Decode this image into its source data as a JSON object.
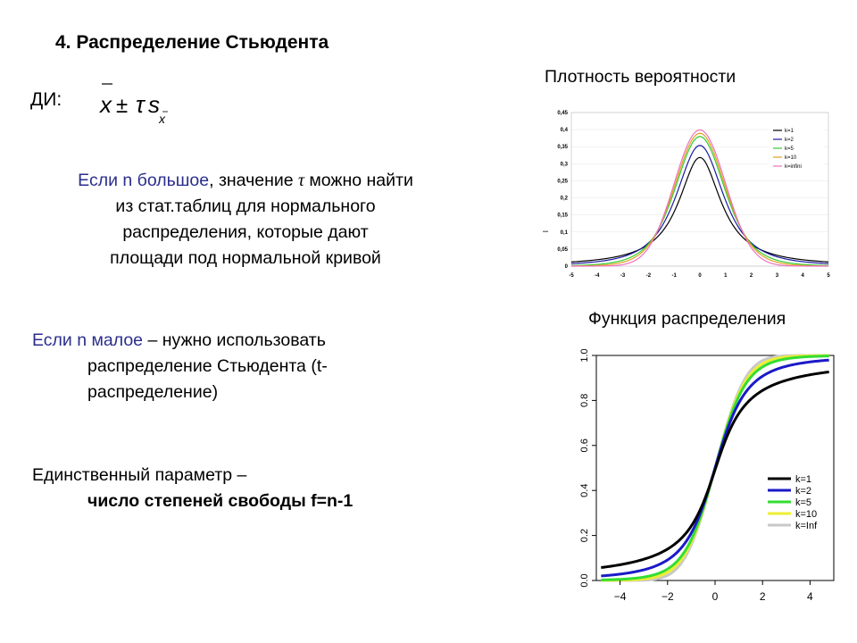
{
  "slide": {
    "title": "4. Распределение Стьюдента",
    "ci_label": "ДИ:",
    "formula": {
      "x": "x",
      "pm": "±",
      "tau": "τ",
      "s": "s",
      "sub": "x"
    },
    "para1": {
      "lead": "Если n большое",
      "rest1": ", значение ",
      "tau": "τ",
      "rest2": " можно найти",
      "line2": "из стат.таблиц для нормального",
      "line3": "распределения, которые дают",
      "line4": "площади под нормальной кривой"
    },
    "para2": {
      "lead": "Если n малое",
      "rest": " – нужно использовать",
      "line2": "распределение Стьюдента (t-",
      "line3": "распределение)"
    },
    "para3": {
      "line1": "Единственный параметр –",
      "line2": "число степеней свободы f=n-1"
    },
    "density_title": "Плотность вероятности",
    "cdf_title": "Функция распределения",
    "density_ylabel": "–"
  },
  "chart_data": [
    {
      "type": "line",
      "title": "Плотность вероятности",
      "xlim": [
        -5,
        5
      ],
      "ylim": [
        0,
        0.45
      ],
      "xticks": [
        "-5",
        "-4",
        "-3",
        "-2",
        "-1",
        "0",
        "1",
        "2",
        "3",
        "4",
        "5"
      ],
      "yticks": [
        "0",
        "0,05",
        "0,1",
        "0,15",
        "0,2",
        "0,25",
        "0,3",
        "0,35",
        "0,4",
        "0,45"
      ],
      "legend_position": "top-right",
      "series": [
        {
          "name": "k=1",
          "df": 1,
          "color": "#000000"
        },
        {
          "name": "k=2",
          "df": 2,
          "color": "#1a1aa0"
        },
        {
          "name": "k=5",
          "df": 5,
          "color": "#33cc33"
        },
        {
          "name": "k=10",
          "df": 10,
          "color": "#e0a020"
        },
        {
          "name": "k=Infini",
          "df": "inf",
          "color": "#f070c0"
        }
      ],
      "legend_labels": [
        "k=1",
        "k=2",
        "k=5",
        "k=10",
        "k=infini"
      ]
    },
    {
      "type": "line",
      "title": "Функция распределения",
      "xlim": [
        -5,
        5
      ],
      "ylim": [
        0,
        1
      ],
      "xticks": [
        "−4",
        "−2",
        "0",
        "2",
        "4"
      ],
      "yticks": [
        "0.0",
        "0.2",
        "0.4",
        "0.6",
        "0.8",
        "1.0"
      ],
      "legend_position": "bottom-right",
      "series": [
        {
          "name": "k=1",
          "df": 1,
          "color": "#000000"
        },
        {
          "name": "k=2",
          "df": 2,
          "color": "#1a1ac8"
        },
        {
          "name": "k=5",
          "df": 5,
          "color": "#33dd33"
        },
        {
          "name": "k=10",
          "df": 10,
          "color": "#eeee33"
        },
        {
          "name": "k=Inf",
          "df": "inf",
          "color": "#c8c8c8"
        }
      ]
    }
  ]
}
